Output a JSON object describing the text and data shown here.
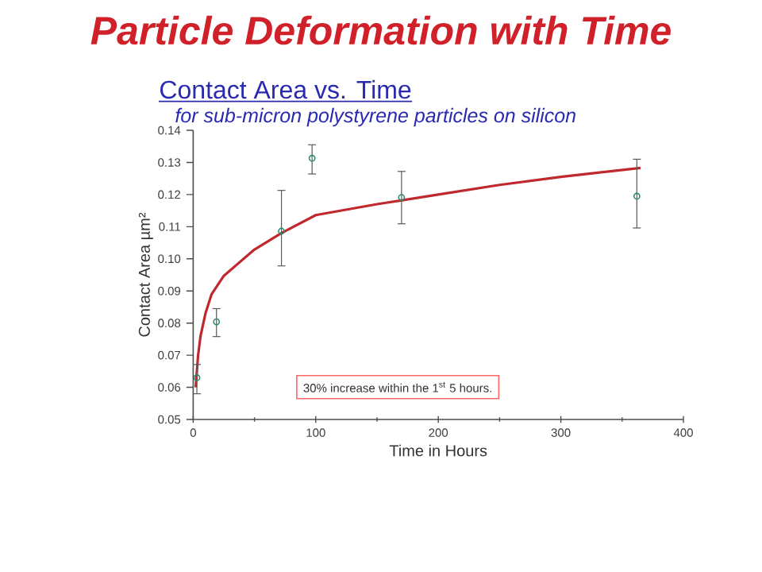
{
  "chart_data": {
    "type": "scatter",
    "title": "Particle Deformation with Time",
    "subtitle": "Contact Area vs. Time",
    "xlabel": "Time in Hours",
    "ylabel": "Contact Area µm²",
    "annotations": [
      "for sub-micron polystyrene particles on silicon",
      "30% increase within the 1$^{st}$ 5 hours."
    ],
    "xlim": [
      0,
      400
    ],
    "xticks": [
      0,
      100,
      200,
      300,
      400
    ],
    "ylim": [
      0.05,
      0.14
    ],
    "yticks": [
      0.05,
      0.06,
      0.07,
      0.08,
      0.09,
      {
        "value": 0.1,
        "label": "0.10"
      },
      0.11,
      0.12,
      0.13,
      0.14
    ],
    "marker": "circle",
    "series": [
      {
        "type": "line",
        "color": "#c0282d",
        "marker": "none",
        "x": [
          2,
          3,
          4,
          6,
          10,
          15,
          25,
          35,
          50,
          72,
          100,
          150,
          200,
          250,
          300,
          365
        ],
        "values": [
          0.06,
          0.065,
          0.07,
          0.076,
          0.083,
          0.089,
          0.0947,
          0.098,
          0.1029,
          0.108,
          0.1136,
          0.117,
          0.12,
          0.123,
          0.1255,
          0.1283
        ]
      },
      {
        "type": "scatter",
        "color": "#2e8b6e",
        "x": [
          3,
          19,
          72,
          97,
          170,
          362
        ],
        "values": [
          0.063,
          0.0804,
          0.1086,
          0.1313,
          0.1191,
          0.1195
        ],
        "errors": [
          [
            0.058,
            0.0671
          ],
          [
            0.0758,
            0.0845
          ],
          [
            0.0978,
            0.1213
          ],
          [
            0.1264,
            0.1355
          ],
          [
            0.1109,
            0.1272
          ],
          [
            0.1096,
            0.131
          ]
        ]
      }
    ]
  }
}
